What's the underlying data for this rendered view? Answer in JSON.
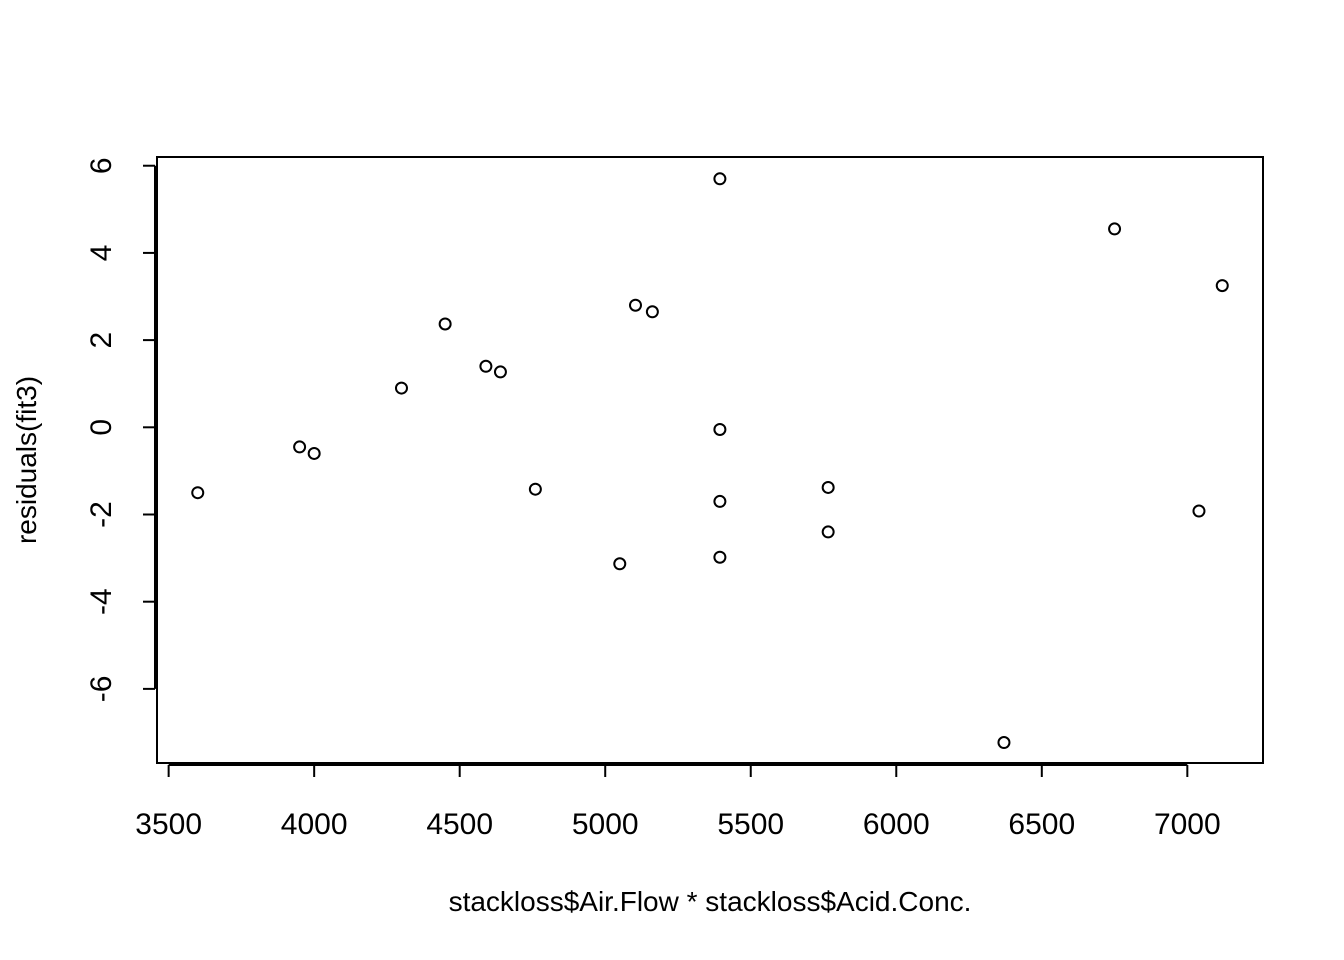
{
  "chart_data": {
    "type": "scatter",
    "title": "",
    "xlabel": "stackloss$Air.Flow * stackloss$Acid.Conc.",
    "ylabel": "residuals(fit3)",
    "xlim": [
      3460,
      7260
    ],
    "ylim": [
      -7.7,
      6.2
    ],
    "xticks": [
      3500,
      4000,
      4500,
      5000,
      5500,
      6000,
      6500,
      7000
    ],
    "yticks": [
      -6,
      -4,
      -2,
      0,
      2,
      4,
      6
    ],
    "xtick_labels": [
      "3500",
      "4000",
      "4500",
      "5000",
      "5500",
      "6000",
      "6500",
      "7000"
    ],
    "ytick_labels": [
      "-6",
      "-4",
      "-2",
      "0",
      "2",
      "4",
      "6"
    ],
    "grid": false,
    "legend": "none",
    "marker": "open-circle",
    "points": [
      {
        "x": 3600,
        "y": -1.5
      },
      {
        "x": 3950,
        "y": -0.45
      },
      {
        "x": 4000,
        "y": -0.6
      },
      {
        "x": 4300,
        "y": 0.9
      },
      {
        "x": 4450,
        "y": 2.37
      },
      {
        "x": 4590,
        "y": 1.4
      },
      {
        "x": 4640,
        "y": 1.27
      },
      {
        "x": 4760,
        "y": -1.42
      },
      {
        "x": 5050,
        "y": -3.13
      },
      {
        "x": 5104,
        "y": 2.8
      },
      {
        "x": 5162,
        "y": 2.65
      },
      {
        "x": 5394,
        "y": 5.7
      },
      {
        "x": 5394,
        "y": -0.05
      },
      {
        "x": 5394,
        "y": -1.7
      },
      {
        "x": 5394,
        "y": -2.98
      },
      {
        "x": 5766,
        "y": -1.38
      },
      {
        "x": 5766,
        "y": -2.4
      },
      {
        "x": 6370,
        "y": -7.23
      },
      {
        "x": 6750,
        "y": 4.55
      },
      {
        "x": 7040,
        "y": -1.92
      },
      {
        "x": 7120,
        "y": 3.25
      }
    ]
  }
}
